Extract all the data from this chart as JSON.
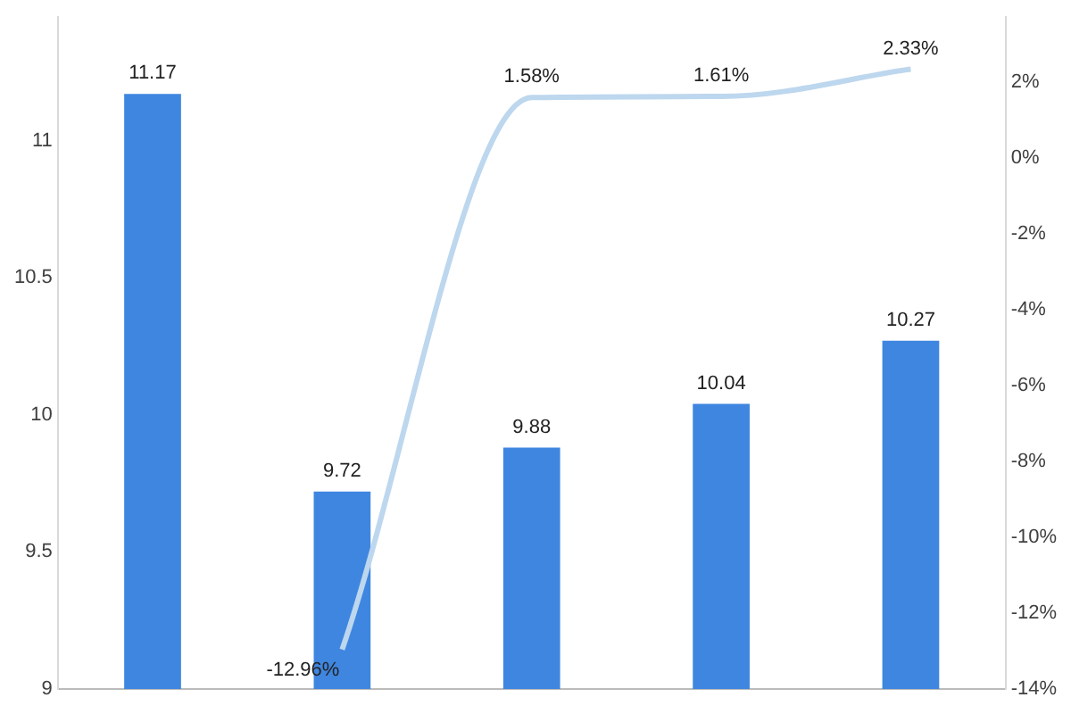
{
  "chart_data": {
    "type": "bar",
    "categories": [
      null,
      null,
      null,
      null,
      null
    ],
    "series": [
      {
        "color": "#3f86e0",
        "values": [
          11.17,
          9.72,
          9.88,
          10.04,
          10.27
        ],
        "value_labels": [
          "11.17",
          "9.72",
          "9.88",
          "10.04",
          "10.27"
        ]
      },
      {
        "type": "line",
        "axis": "y2",
        "color": "#bdd7ee",
        "values": [
          null,
          -12.96,
          1.58,
          1.61,
          2.33
        ],
        "value_labels": [
          null,
          "-12.96%",
          "1.58%",
          "1.61%",
          "2.33%"
        ]
      }
    ],
    "ylim": [
      9,
      11.45
    ],
    "yticks": [
      9,
      9.5,
      10,
      10.5,
      11
    ],
    "y2lim": [
      -14,
      3.7
    ],
    "y2ticks": [
      {
        "value": -14,
        "label": "-14%"
      },
      {
        "value": -12,
        "label": "-12%"
      },
      {
        "value": -10,
        "label": "-10%"
      },
      {
        "value": -8,
        "label": "-8%"
      },
      {
        "value": -6,
        "label": "-6%"
      },
      {
        "value": -4,
        "label": "-4%"
      },
      {
        "value": -2,
        "label": "-2%"
      },
      {
        "value": 0,
        "label": "0%"
      },
      {
        "value": 2,
        "label": "2%"
      }
    ],
    "grid": false,
    "legend": false,
    "tick_labels": "y",
    "marker": "none",
    "line_style": "solid"
  }
}
